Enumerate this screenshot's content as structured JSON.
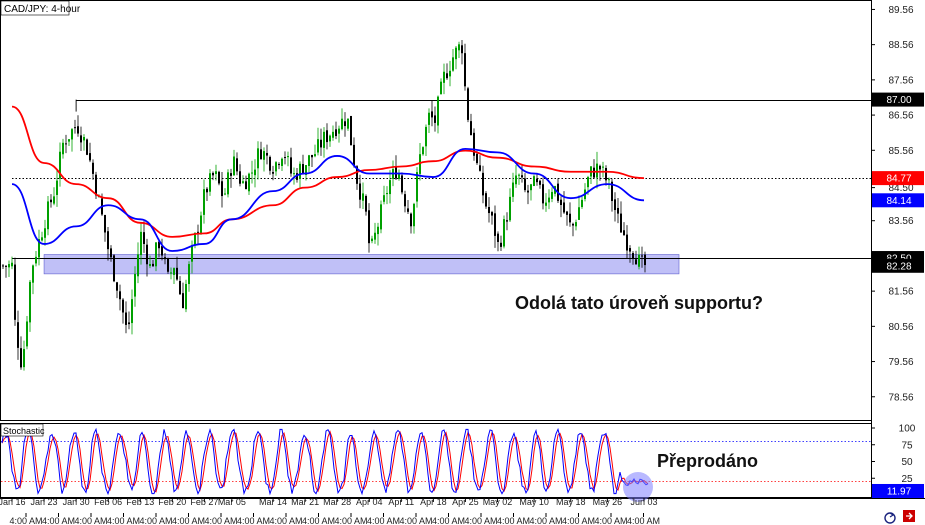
{
  "chart_data": {
    "type": "candlestick",
    "title": "CAD/JPY: 4-hour",
    "price_ylim": [
      77.9,
      89.8
    ],
    "price_ticks": [
      "89.56",
      "88.56",
      "87.56",
      "86.56",
      "85.56",
      "84.50",
      "83.56",
      "82.50",
      "81.56",
      "80.56",
      "79.56",
      "78.56"
    ],
    "badges": [
      {
        "label": "87.00",
        "value": 87.0,
        "color": "#000000",
        "text_color": "#ffffff"
      },
      {
        "label": "84.77",
        "value": 84.77,
        "color": "#ff0000",
        "text_color": "#ffffff"
      },
      {
        "label": "84.14",
        "value": 84.14,
        "color": "#0000ff",
        "text_color": "#ffffff"
      },
      {
        "label": "82.50",
        "value": 82.5,
        "color": "#000000",
        "text_color": "#ffffff"
      },
      {
        "label": "82.28",
        "value": 82.28,
        "color": "#000000",
        "text_color": "#ffffff"
      }
    ],
    "horizontal_lines": [
      {
        "value": 87.0,
        "from": "Jan 30",
        "style": "solid"
      },
      {
        "value": 84.77,
        "from": "Jan 16",
        "style": "dotted"
      },
      {
        "value": 82.5,
        "from": "Jan 16",
        "style": "solid"
      }
    ],
    "support_zone": {
      "low": 82.05,
      "high": 82.6,
      "from": "Jan 23",
      "to": "Jun 03"
    },
    "close_path": [
      {
        "x": "Jan 16",
        "y": 81.0
      },
      {
        "x": "Jan 18",
        "y": 79.4
      },
      {
        "x": "Jan 19",
        "y": 80.8
      },
      {
        "x": "Jan 20",
        "y": 82.2
      },
      {
        "x": "Jan 23",
        "y": 83.6
      },
      {
        "x": "Jan 25",
        "y": 84.4
      },
      {
        "x": "Jan 27",
        "y": 85.8
      },
      {
        "x": "Jan 30",
        "y": 86.3
      },
      {
        "x": "Feb 01",
        "y": 85.7
      },
      {
        "x": "Feb 03",
        "y": 84.6
      },
      {
        "x": "Feb 05",
        "y": 83.3
      },
      {
        "x": "Feb 06",
        "y": 82.6
      },
      {
        "x": "Feb 08",
        "y": 81.6
      },
      {
        "x": "Feb 10",
        "y": 80.3
      },
      {
        "x": "Feb 12",
        "y": 82.4
      },
      {
        "x": "Feb 13",
        "y": 83.2
      },
      {
        "x": "Feb 15",
        "y": 82.2
      },
      {
        "x": "Feb 17",
        "y": 83.0
      },
      {
        "x": "Feb 19",
        "y": 81.8
      },
      {
        "x": "Feb 20",
        "y": 82.4
      },
      {
        "x": "Feb 22",
        "y": 81.2
      },
      {
        "x": "Feb 24",
        "y": 82.6
      },
      {
        "x": "Feb 26",
        "y": 83.8
      },
      {
        "x": "Feb 27",
        "y": 84.4
      },
      {
        "x": "Mar 01",
        "y": 84.9
      },
      {
        "x": "Mar 03",
        "y": 84.2
      },
      {
        "x": "Mar 05",
        "y": 85.3
      },
      {
        "x": "Mar 07",
        "y": 84.6
      },
      {
        "x": "Mar 09",
        "y": 84.9
      },
      {
        "x": "Mar 11",
        "y": 85.6
      },
      {
        "x": "Mar 14",
        "y": 85.1
      },
      {
        "x": "Mar 16",
        "y": 85.6
      },
      {
        "x": "Mar 18",
        "y": 84.8
      },
      {
        "x": "Mar 21",
        "y": 85.2
      },
      {
        "x": "Mar 23",
        "y": 85.5
      },
      {
        "x": "Mar 25",
        "y": 85.9
      },
      {
        "x": "Mar 28",
        "y": 86.3
      },
      {
        "x": "Mar 30",
        "y": 86.5
      },
      {
        "x": "Apr 01",
        "y": 84.8
      },
      {
        "x": "Apr 03",
        "y": 83.8
      },
      {
        "x": "Apr 04",
        "y": 82.6
      },
      {
        "x": "Apr 06",
        "y": 83.6
      },
      {
        "x": "Apr 08",
        "y": 84.6
      },
      {
        "x": "Apr 10",
        "y": 85.1
      },
      {
        "x": "Apr 11",
        "y": 84.4
      },
      {
        "x": "Apr 13",
        "y": 83.6
      },
      {
        "x": "Apr 15",
        "y": 85.5
      },
      {
        "x": "Apr 17",
        "y": 86.6
      },
      {
        "x": "Apr 18",
        "y": 86.3
      },
      {
        "x": "Apr 20",
        "y": 87.6
      },
      {
        "x": "Apr 22",
        "y": 88.2
      },
      {
        "x": "Apr 24",
        "y": 88.6
      },
      {
        "x": "Apr 25",
        "y": 86.8
      },
      {
        "x": "Apr 27",
        "y": 85.3
      },
      {
        "x": "Apr 29",
        "y": 84.1
      },
      {
        "x": "May 01",
        "y": 83.4
      },
      {
        "x": "May 02",
        "y": 82.8
      },
      {
        "x": "May 04",
        "y": 83.8
      },
      {
        "x": "May 06",
        "y": 84.9
      },
      {
        "x": "May 08",
        "y": 84.3
      },
      {
        "x": "May 10",
        "y": 84.6
      },
      {
        "x": "May 12",
        "y": 84.1
      },
      {
        "x": "May 14",
        "y": 84.6
      },
      {
        "x": "May 16",
        "y": 83.9
      },
      {
        "x": "May 18",
        "y": 83.3
      },
      {
        "x": "May 20",
        "y": 84.1
      },
      {
        "x": "May 22",
        "y": 84.9
      },
      {
        "x": "May 24",
        "y": 85.1
      },
      {
        "x": "May 26",
        "y": 84.6
      },
      {
        "x": "May 28",
        "y": 83.6
      },
      {
        "x": "May 30",
        "y": 83.0
      },
      {
        "x": "Jun 01",
        "y": 82.6
      },
      {
        "x": "Jun 02",
        "y": 82.28
      }
    ],
    "ma_red": [
      {
        "x": "Jan 16",
        "y": 86.8
      },
      {
        "x": "Jan 23",
        "y": 85.2
      },
      {
        "x": "Jan 30",
        "y": 84.6
      },
      {
        "x": "Feb 06",
        "y": 84.2
      },
      {
        "x": "Feb 13",
        "y": 83.5
      },
      {
        "x": "Feb 20",
        "y": 83.1
      },
      {
        "x": "Feb 27",
        "y": 83.2
      },
      {
        "x": "Mar 05",
        "y": 83.6
      },
      {
        "x": "Mar 14",
        "y": 84.0
      },
      {
        "x": "Mar 21",
        "y": 84.5
      },
      {
        "x": "Mar 28",
        "y": 84.8
      },
      {
        "x": "Apr 04",
        "y": 85.0
      },
      {
        "x": "Apr 11",
        "y": 85.1
      },
      {
        "x": "Apr 18",
        "y": 85.25
      },
      {
        "x": "Apr 25",
        "y": 85.55
      },
      {
        "x": "May 02",
        "y": 85.35
      },
      {
        "x": "May 10",
        "y": 85.1
      },
      {
        "x": "May 18",
        "y": 84.95
      },
      {
        "x": "May 26",
        "y": 84.95
      },
      {
        "x": "Jun 03",
        "y": 84.77
      }
    ],
    "ma_blue": [
      {
        "x": "Jan 16",
        "y": 84.6
      },
      {
        "x": "Jan 23",
        "y": 82.9
      },
      {
        "x": "Jan 30",
        "y": 83.4
      },
      {
        "x": "Feb 06",
        "y": 84.0
      },
      {
        "x": "Feb 13",
        "y": 83.6
      },
      {
        "x": "Feb 20",
        "y": 82.7
      },
      {
        "x": "Feb 27",
        "y": 82.9
      },
      {
        "x": "Mar 05",
        "y": 83.6
      },
      {
        "x": "Mar 14",
        "y": 84.4
      },
      {
        "x": "Mar 21",
        "y": 84.9
      },
      {
        "x": "Mar 28",
        "y": 85.4
      },
      {
        "x": "Apr 04",
        "y": 84.9
      },
      {
        "x": "Apr 11",
        "y": 84.9
      },
      {
        "x": "Apr 18",
        "y": 84.8
      },
      {
        "x": "Apr 25",
        "y": 85.6
      },
      {
        "x": "May 02",
        "y": 85.5
      },
      {
        "x": "May 10",
        "y": 84.9
      },
      {
        "x": "May 18",
        "y": 84.2
      },
      {
        "x": "May 26",
        "y": 84.6
      },
      {
        "x": "Jun 03",
        "y": 84.14
      }
    ],
    "stochastic": {
      "label": "Stochastic",
      "ylim": [
        0,
        100
      ],
      "ticks": [
        "100",
        "75",
        "50",
        "25"
      ],
      "overbought": 80,
      "oversold": 20,
      "current_label": "11.97",
      "current_value": 11.97
    },
    "date_labels": [
      "Jan 16",
      "Jan 23",
      "Jan 30",
      "Feb 06",
      "Feb 13",
      "Feb 20",
      "Feb 27",
      "Mar 05",
      "Mar 14",
      "Mar 21",
      "Mar 28",
      "Apr 04",
      "Apr 11",
      "Apr 18",
      "Apr 25",
      "May 02",
      "May 10",
      "May 18",
      "May 26",
      "Jun 03"
    ],
    "time_label": "4:00 AM",
    "annotations": {
      "support_question": "Odolá tato úroveň supportu?",
      "oversold": "Přeprodáno"
    },
    "colors": {
      "up_candle": "#00a000",
      "down_candle": "#000000",
      "ma_red": "#ff0000",
      "ma_blue": "#0000ff",
      "zone": "#8c8cf0",
      "stoch_main": "#0000ff",
      "stoch_signal": "#ff0000",
      "oversold_circle": "#8080ff"
    }
  }
}
